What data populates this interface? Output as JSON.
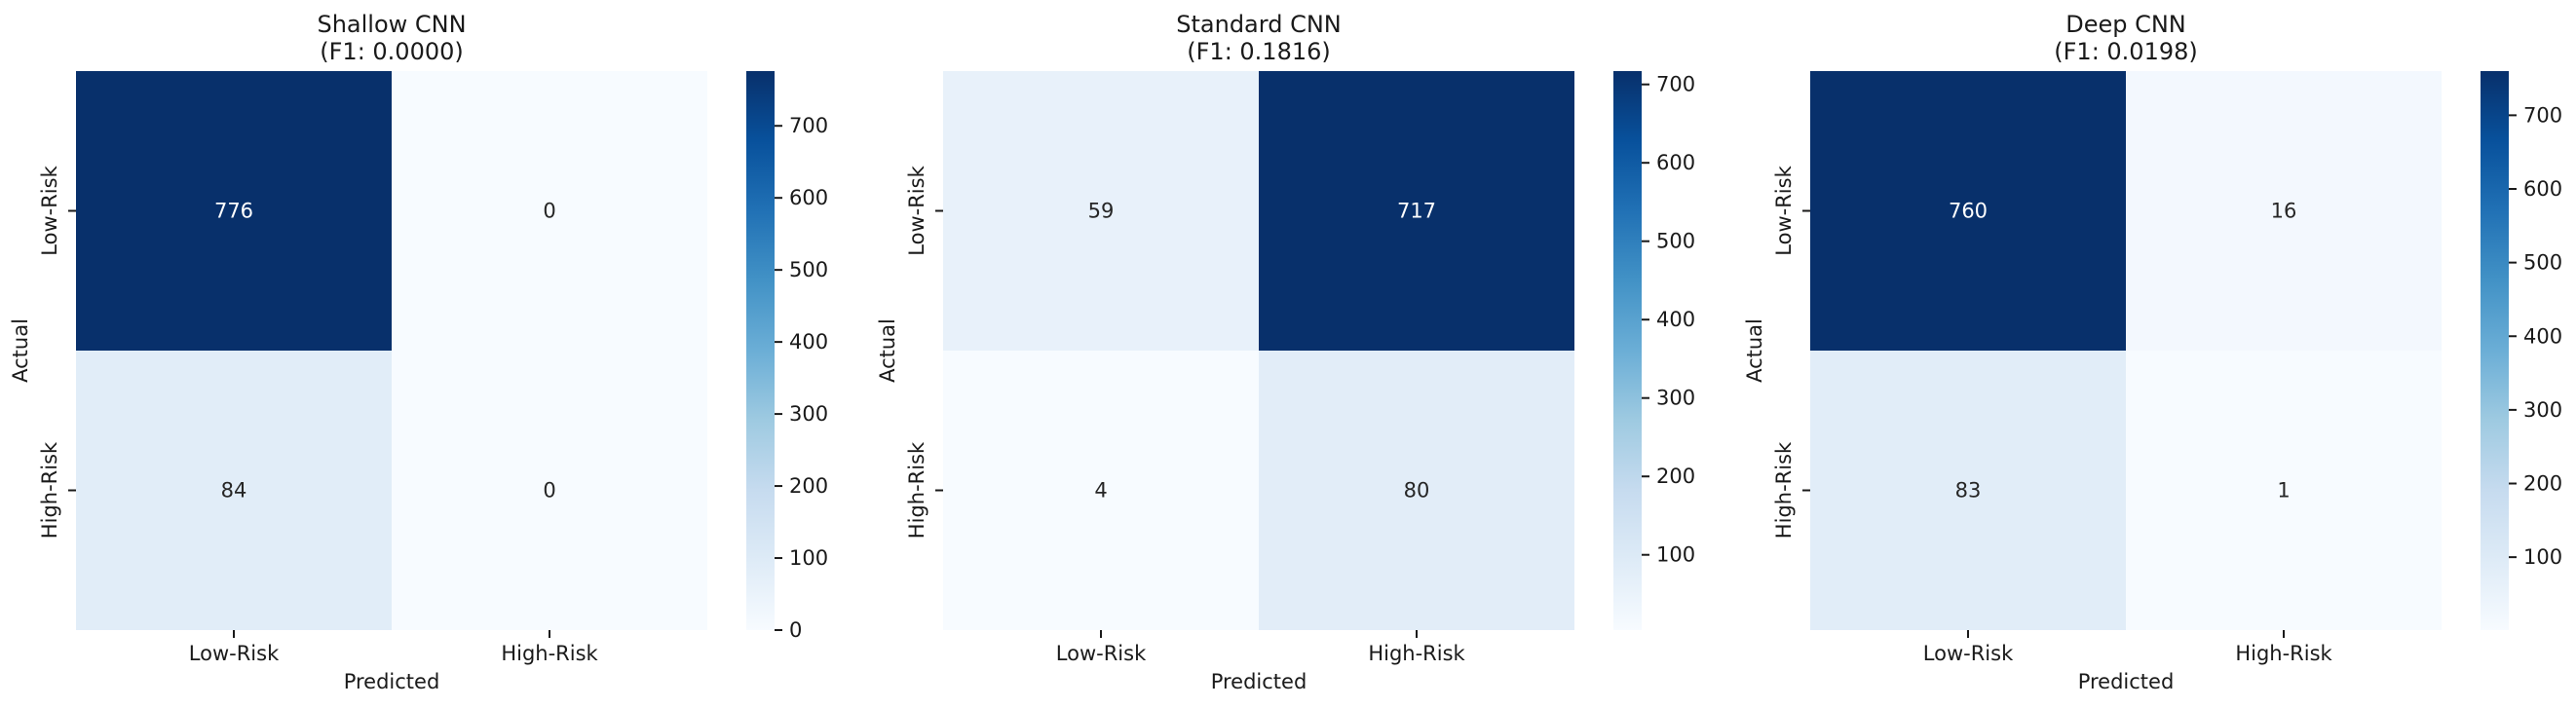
{
  "chart_data": [
    {
      "type": "heatmap",
      "title": "Shallow CNN",
      "subtitle": "(F1: 0.0000)",
      "xlabel": "Predicted",
      "ylabel": "Actual",
      "x_categories": [
        "Low-Risk",
        "High-Risk"
      ],
      "y_categories": [
        "Low-Risk",
        "High-Risk"
      ],
      "values": [
        [
          776,
          0
        ],
        [
          84,
          0
        ]
      ],
      "colorbar": {
        "min": 0,
        "max": 776,
        "ticks": [
          0,
          100,
          200,
          300,
          400,
          500,
          600,
          700
        ]
      },
      "colormap": "Blues"
    },
    {
      "type": "heatmap",
      "title": "Standard CNN",
      "subtitle": "(F1: 0.1816)",
      "xlabel": "Predicted",
      "ylabel": "Actual",
      "x_categories": [
        "Low-Risk",
        "High-Risk"
      ],
      "y_categories": [
        "Low-Risk",
        "High-Risk"
      ],
      "values": [
        [
          59,
          717
        ],
        [
          4,
          80
        ]
      ],
      "colorbar": {
        "min": 4,
        "max": 717,
        "ticks": [
          100,
          200,
          300,
          400,
          500,
          600,
          700
        ]
      },
      "colormap": "Blues"
    },
    {
      "type": "heatmap",
      "title": "Deep CNN",
      "subtitle": "(F1: 0.0198)",
      "xlabel": "Predicted",
      "ylabel": "Actual",
      "x_categories": [
        "Low-Risk",
        "High-Risk"
      ],
      "y_categories": [
        "Low-Risk",
        "High-Risk"
      ],
      "values": [
        [
          760,
          16
        ],
        [
          83,
          1
        ]
      ],
      "colorbar": {
        "min": 1,
        "max": 760,
        "ticks": [
          100,
          200,
          300,
          400,
          500,
          600,
          700
        ]
      },
      "colormap": "Blues"
    }
  ]
}
